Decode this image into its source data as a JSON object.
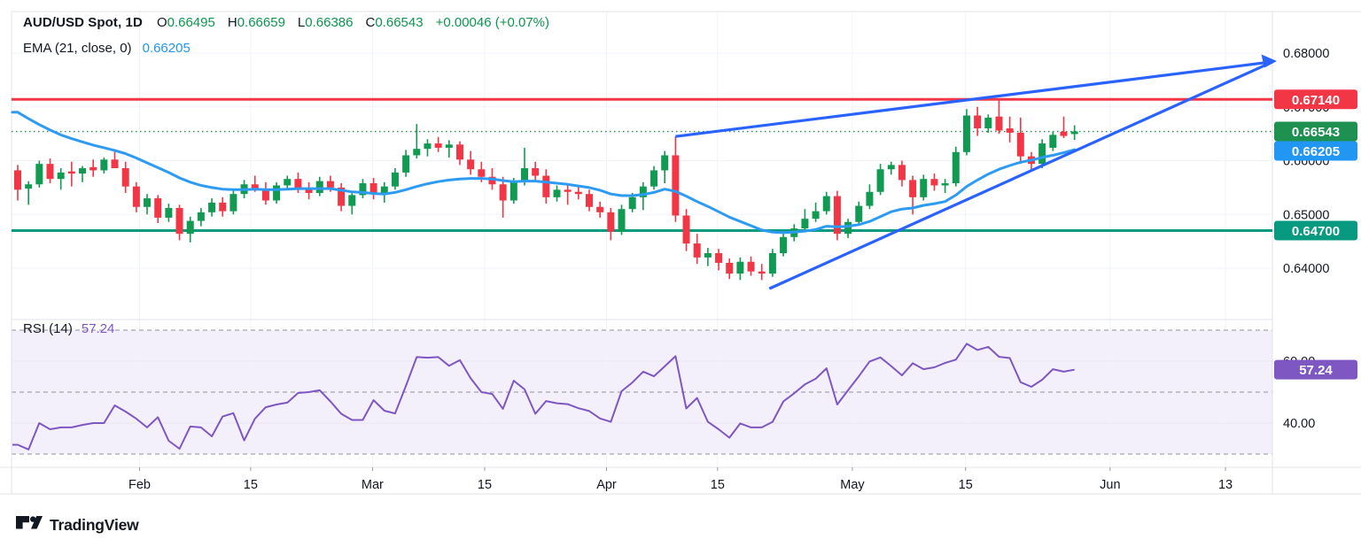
{
  "legend": {
    "symbol": "AUD/USD Spot, 1D",
    "items": [
      {
        "k": "O",
        "v": "0.66495"
      },
      {
        "k": "H",
        "v": "0.66659"
      },
      {
        "k": "L",
        "v": "0.66386"
      },
      {
        "k": "C",
        "v": "0.66543"
      }
    ],
    "change": "+0.00046 (+0.07%)",
    "ema_label": "EMA (21, close, 0)",
    "ema_value": "0.66205"
  },
  "rsi_legend": {
    "label": "RSI (14)",
    "value": "57.24"
  },
  "footer": {
    "brand": "TradingView"
  },
  "colors": {
    "up": "#119a52",
    "down": "#f23645",
    "ema": "#2e9bf3",
    "trend": "#2962ff",
    "resistance": "#f23645",
    "support": "#089981",
    "rsi": "#7e57c2",
    "close_badge": "#1e9151",
    "ema_badge": "#2196f3",
    "rsi_badge": "#7e57c2",
    "axis_text": "#131722",
    "grid": "#f0f3fa",
    "frame": "#e0e3eb",
    "dashed": "#8f939e",
    "rsi_bg": "#f3effb"
  },
  "chart_data": {
    "type": "candlestick",
    "title": "AUD/USD Spot, 1D",
    "price_pane": {
      "range": [
        0.6312,
        0.6899
      ],
      "axis_ticks": [
        {
          "label": "0.68000",
          "price": 0.68
        },
        {
          "label": "0.67000",
          "price": 0.67
        },
        {
          "label": "0.66000",
          "price": 0.66
        },
        {
          "label": "0.65000",
          "price": 0.65
        },
        {
          "label": "0.64000",
          "price": 0.64
        }
      ],
      "levels": [
        {
          "name": "resistance",
          "price": 0.6714,
          "label": "0.67140",
          "color": "#f23645"
        },
        {
          "name": "support",
          "price": 0.647,
          "label": "0.64700",
          "color": "#089981"
        }
      ],
      "last_close": 0.66543,
      "last_close_label": "0.66543",
      "ema_period": 21,
      "last_ema": 0.66205,
      "last_ema_label": "0.66205",
      "trendlines": [
        {
          "name": "wedge-upper",
          "from_index": 61,
          "from_price": 0.6645,
          "to_index": 116.4,
          "to_price": 0.6784,
          "arrow": true
        },
        {
          "name": "wedge-lower",
          "from_index": 69.7,
          "from_price": 0.6362,
          "to_index": 116.4,
          "to_price": 0.6784,
          "arrow": false
        }
      ],
      "candles": [
        [
          0.6582,
          0.6592,
          0.6526,
          0.6546
        ],
        [
          0.6548,
          0.6562,
          0.6518,
          0.6556
        ],
        [
          0.6556,
          0.66,
          0.655,
          0.6594
        ],
        [
          0.6594,
          0.6604,
          0.6558,
          0.6566
        ],
        [
          0.6566,
          0.6586,
          0.6546,
          0.6578
        ],
        [
          0.658,
          0.6598,
          0.6552,
          0.6576
        ],
        [
          0.6576,
          0.659,
          0.656,
          0.6586
        ],
        [
          0.6588,
          0.6602,
          0.657,
          0.6582
        ],
        [
          0.6582,
          0.6606,
          0.6576,
          0.6602
        ],
        [
          0.6602,
          0.6618,
          0.6588,
          0.6586
        ],
        [
          0.6586,
          0.6598,
          0.654,
          0.6552
        ],
        [
          0.6552,
          0.656,
          0.6504,
          0.6514
        ],
        [
          0.6514,
          0.6538,
          0.65,
          0.653
        ],
        [
          0.653,
          0.6536,
          0.6484,
          0.6494
        ],
        [
          0.6494,
          0.652,
          0.6486,
          0.6512
        ],
        [
          0.6512,
          0.6518,
          0.6452,
          0.6464
        ],
        [
          0.6464,
          0.6496,
          0.6448,
          0.6488
        ],
        [
          0.6488,
          0.6512,
          0.6478,
          0.6504
        ],
        [
          0.6504,
          0.653,
          0.6496,
          0.6522
        ],
        [
          0.6522,
          0.6532,
          0.6496,
          0.6506
        ],
        [
          0.6506,
          0.6544,
          0.65,
          0.6538
        ],
        [
          0.6538,
          0.6564,
          0.653,
          0.6556
        ],
        [
          0.6556,
          0.6572,
          0.6542,
          0.6548
        ],
        [
          0.6548,
          0.656,
          0.6518,
          0.6526
        ],
        [
          0.6526,
          0.656,
          0.652,
          0.6554
        ],
        [
          0.6554,
          0.6572,
          0.6546,
          0.6566
        ],
        [
          0.6566,
          0.6578,
          0.654,
          0.6548
        ],
        [
          0.6548,
          0.656,
          0.6528,
          0.654
        ],
        [
          0.654,
          0.657,
          0.6534,
          0.6562
        ],
        [
          0.6562,
          0.6572,
          0.6542,
          0.655
        ],
        [
          0.655,
          0.6558,
          0.6506,
          0.6516
        ],
        [
          0.6516,
          0.6544,
          0.65,
          0.6536
        ],
        [
          0.6536,
          0.6566,
          0.653,
          0.6558
        ],
        [
          0.6558,
          0.6568,
          0.6528,
          0.6538
        ],
        [
          0.6538,
          0.656,
          0.6522,
          0.6552
        ],
        [
          0.6552,
          0.6586,
          0.6546,
          0.6578
        ],
        [
          0.6578,
          0.662,
          0.657,
          0.661
        ],
        [
          0.661,
          0.6668,
          0.6604,
          0.6622
        ],
        [
          0.6622,
          0.664,
          0.6608,
          0.6632
        ],
        [
          0.6632,
          0.6644,
          0.6616,
          0.6624
        ],
        [
          0.6624,
          0.6638,
          0.6606,
          0.663
        ],
        [
          0.663,
          0.6636,
          0.6592,
          0.6602
        ],
        [
          0.6602,
          0.6618,
          0.6574,
          0.6584
        ],
        [
          0.6584,
          0.6598,
          0.656,
          0.657
        ],
        [
          0.657,
          0.6586,
          0.6546,
          0.6556
        ],
        [
          0.6556,
          0.657,
          0.6494,
          0.6526
        ],
        [
          0.6526,
          0.6568,
          0.652,
          0.656
        ],
        [
          0.656,
          0.6624,
          0.6554,
          0.6586
        ],
        [
          0.6586,
          0.6598,
          0.6562,
          0.6572
        ],
        [
          0.6572,
          0.6584,
          0.652,
          0.6532
        ],
        [
          0.6532,
          0.6554,
          0.6524,
          0.6546
        ],
        [
          0.6546,
          0.6554,
          0.6518,
          0.6542
        ],
        [
          0.6542,
          0.6552,
          0.6528,
          0.6538
        ],
        [
          0.6538,
          0.6546,
          0.6506,
          0.6514
        ],
        [
          0.6514,
          0.6524,
          0.6494,
          0.6504
        ],
        [
          0.6504,
          0.6512,
          0.6452,
          0.6468
        ],
        [
          0.6468,
          0.6518,
          0.6462,
          0.651
        ],
        [
          0.651,
          0.654,
          0.6504,
          0.6532
        ],
        [
          0.6532,
          0.656,
          0.6508,
          0.6552
        ],
        [
          0.6552,
          0.659,
          0.6546,
          0.6582
        ],
        [
          0.6582,
          0.6618,
          0.6558,
          0.661
        ],
        [
          0.661,
          0.6645,
          0.6486,
          0.6498
        ],
        [
          0.6498,
          0.651,
          0.6432,
          0.6446
        ],
        [
          0.6446,
          0.6464,
          0.6408,
          0.642
        ],
        [
          0.642,
          0.6438,
          0.6404,
          0.6428
        ],
        [
          0.6428,
          0.6436,
          0.6396,
          0.641
        ],
        [
          0.641,
          0.6418,
          0.638,
          0.639
        ],
        [
          0.639,
          0.642,
          0.6378,
          0.6412
        ],
        [
          0.6412,
          0.6422,
          0.6386,
          0.6394
        ],
        [
          0.6394,
          0.6408,
          0.6378,
          0.639
        ],
        [
          0.639,
          0.6436,
          0.6384,
          0.6428
        ],
        [
          0.6428,
          0.6466,
          0.6422,
          0.6458
        ],
        [
          0.6458,
          0.6482,
          0.645,
          0.6474
        ],
        [
          0.6474,
          0.651,
          0.6468,
          0.6492
        ],
        [
          0.6492,
          0.6522,
          0.6486,
          0.6506
        ],
        [
          0.6506,
          0.6542,
          0.65,
          0.6534
        ],
        [
          0.6534,
          0.6544,
          0.6452,
          0.6464
        ],
        [
          0.6464,
          0.6492,
          0.6456,
          0.6486
        ],
        [
          0.6486,
          0.6524,
          0.648,
          0.6516
        ],
        [
          0.6516,
          0.6556,
          0.651,
          0.6542
        ],
        [
          0.6542,
          0.6594,
          0.6536,
          0.6584
        ],
        [
          0.6584,
          0.6598,
          0.6574,
          0.6592
        ],
        [
          0.6592,
          0.66,
          0.6552,
          0.6564
        ],
        [
          0.6564,
          0.6572,
          0.65,
          0.6532
        ],
        [
          0.6532,
          0.6574,
          0.6526,
          0.6566
        ],
        [
          0.6566,
          0.6576,
          0.6544,
          0.6554
        ],
        [
          0.6554,
          0.6566,
          0.654,
          0.6558
        ],
        [
          0.6558,
          0.6626,
          0.6552,
          0.6616
        ],
        [
          0.6616,
          0.6696,
          0.661,
          0.6684
        ],
        [
          0.6684,
          0.67,
          0.6646,
          0.666
        ],
        [
          0.666,
          0.6686,
          0.6652,
          0.668
        ],
        [
          0.6682,
          0.6716,
          0.665,
          0.6656
        ],
        [
          0.666,
          0.6682,
          0.6634,
          0.6652
        ],
        [
          0.6652,
          0.668,
          0.6594,
          0.6608
        ],
        [
          0.6608,
          0.6616,
          0.658,
          0.6594
        ],
        [
          0.6594,
          0.664,
          0.6586,
          0.6632
        ],
        [
          0.6624,
          0.6654,
          0.6618,
          0.6648
        ],
        [
          0.6654,
          0.6682,
          0.6642,
          0.6646
        ],
        [
          0.66495,
          0.66659,
          0.66386,
          0.66543
        ]
      ],
      "ema": [
        0.669,
        0.6678,
        0.6667,
        0.6657,
        0.6648,
        0.6641,
        0.6635,
        0.6629,
        0.6624,
        0.6619,
        0.6613,
        0.6605,
        0.6596,
        0.6587,
        0.6578,
        0.6568,
        0.656,
        0.6554,
        0.655,
        0.6547,
        0.6546,
        0.6546,
        0.6547,
        0.6546,
        0.6546,
        0.6547,
        0.6548,
        0.6548,
        0.6548,
        0.6548,
        0.6545,
        0.6542,
        0.6541,
        0.6539,
        0.6538,
        0.6541,
        0.6546,
        0.6552,
        0.6557,
        0.6561,
        0.6564,
        0.6566,
        0.6567,
        0.6567,
        0.6566,
        0.6563,
        0.6561,
        0.6562,
        0.6562,
        0.656,
        0.6558,
        0.6556,
        0.6553,
        0.655,
        0.6545,
        0.6538,
        0.6535,
        0.6535,
        0.6537,
        0.6541,
        0.6547,
        0.6543,
        0.6534,
        0.6524,
        0.6515,
        0.6505,
        0.6495,
        0.6487,
        0.6479,
        0.6471,
        0.6467,
        0.6466,
        0.6467,
        0.6469,
        0.6472,
        0.6478,
        0.6477,
        0.6478,
        0.6481,
        0.6487,
        0.6496,
        0.6505,
        0.651,
        0.6512,
        0.6517,
        0.652,
        0.6524,
        0.6536,
        0.6552,
        0.6564,
        0.6575,
        0.6584,
        0.6591,
        0.6597,
        0.6601,
        0.6606,
        0.661,
        0.6615,
        0.66205
      ]
    },
    "rsi_pane": {
      "period": 14,
      "range": [
        25.7,
        72.3
      ],
      "dashed_levels": [
        70,
        50,
        30
      ],
      "solid_levels": [
        60,
        40
      ],
      "axis_ticks": [
        {
          "label": "60.00",
          "value": 60
        },
        {
          "label": "40.00",
          "value": 40
        }
      ],
      "last": 57.24,
      "last_label": "57.24",
      "values": [
        33.0,
        31.5,
        40.0,
        38.0,
        38.6,
        38.6,
        39.4,
        40.0,
        40.0,
        45.7,
        43.7,
        41.4,
        38.6,
        41.9,
        34.3,
        31.7,
        38.9,
        38.6,
        35.7,
        42.1,
        43.2,
        34.4,
        41.4,
        45.1,
        46.0,
        46.6,
        49.7,
        50.0,
        50.6,
        47.0,
        43.0,
        41.0,
        41.0,
        47.4,
        44.0,
        43.1,
        52.0,
        61.3,
        61.1,
        61.3,
        58.5,
        60.3,
        54.5,
        50.0,
        49.4,
        44.6,
        53.7,
        50.9,
        43.0,
        47.1,
        46.4,
        46.1,
        44.8,
        43.9,
        41.5,
        40.4,
        50.3,
        53.1,
        56.6,
        55.1,
        58.3,
        61.6,
        44.7,
        48.1,
        40.4,
        38.0,
        35.3,
        39.9,
        38.6,
        38.6,
        40.4,
        47.0,
        49.6,
        52.5,
        54.3,
        57.7,
        46.0,
        50.6,
        55.1,
        59.9,
        61.2,
        58.4,
        55.4,
        59.3,
        57.4,
        58.0,
        59.4,
        60.5,
        65.6,
        63.6,
        64.6,
        61.4,
        61.0,
        53.2,
        51.7,
        54.0,
        57.4,
        56.6,
        57.24
      ]
    },
    "x_axis": {
      "ticks": [
        {
          "label": "Feb",
          "index": 11.3
        },
        {
          "label": "15",
          "index": 21.6
        },
        {
          "label": "Mar",
          "index": 32.9
        },
        {
          "label": "15",
          "index": 43.3
        },
        {
          "label": "Apr",
          "index": 54.6
        },
        {
          "label": "15",
          "index": 64.9
        },
        {
          "label": "May",
          "index": 77.4
        },
        {
          "label": "15",
          "index": 87.9
        },
        {
          "label": "Jun",
          "index": 101.3
        },
        {
          "label": "13",
          "index": 112.0
        }
      ]
    }
  }
}
